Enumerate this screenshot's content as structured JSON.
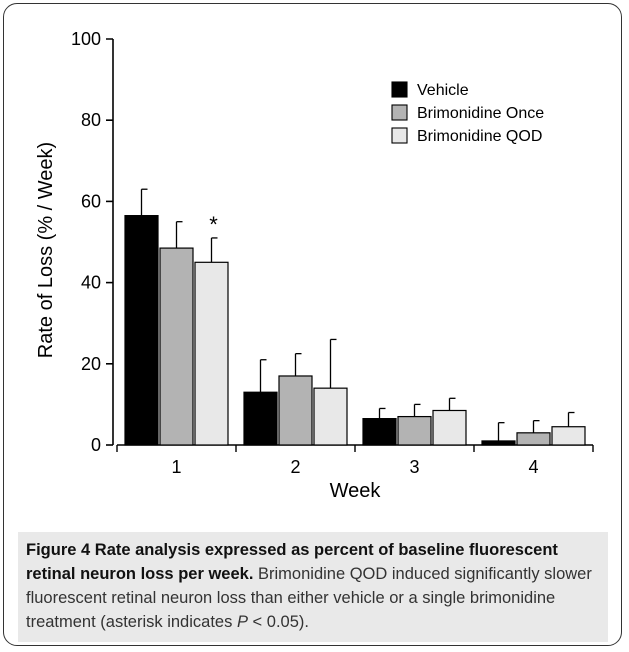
{
  "chart_data": {
    "type": "bar",
    "xlabel": "Week",
    "ylabel": "Rate of Loss  (% / Week)",
    "ylim": [
      0,
      100
    ],
    "yticks": [
      "0",
      "20",
      "40",
      "60",
      "80",
      "100"
    ],
    "categories": [
      "1",
      "2",
      "3",
      "4"
    ],
    "series": [
      {
        "name": "Vehicle",
        "color": "#000000",
        "values": [
          56.5,
          13.0,
          6.5,
          1.0
        ],
        "errors": [
          6.5,
          8.0,
          2.5,
          4.5
        ]
      },
      {
        "name": "Brimonidine Once",
        "color": "#b3b3b3",
        "values": [
          48.5,
          17.0,
          7.0,
          3.0
        ],
        "errors": [
          6.5,
          5.5,
          3.0,
          3.0
        ]
      },
      {
        "name": "Brimonidine QOD",
        "color": "#e8e8e8",
        "values": [
          45.0,
          14.0,
          8.5,
          4.5
        ],
        "errors": [
          6.0,
          12.0,
          3.0,
          3.5
        ]
      }
    ],
    "annotations": [
      {
        "text": "*",
        "category": "1",
        "series": "Brimonidine QOD"
      }
    ],
    "legend_position": "top-right",
    "grid": false
  },
  "caption": {
    "figure_label": "Figure 4",
    "title": "Rate analysis expressed as percent of baseline fluorescent retinal neuron loss per week.",
    "text_1": "Brimonidine QOD induced significantly slower fluorescent retinal neuron loss than either vehicle or a single brimonidine treatment (asterisk indicates",
    "p_symbol": "P",
    "text_2": "< 0.05)."
  }
}
